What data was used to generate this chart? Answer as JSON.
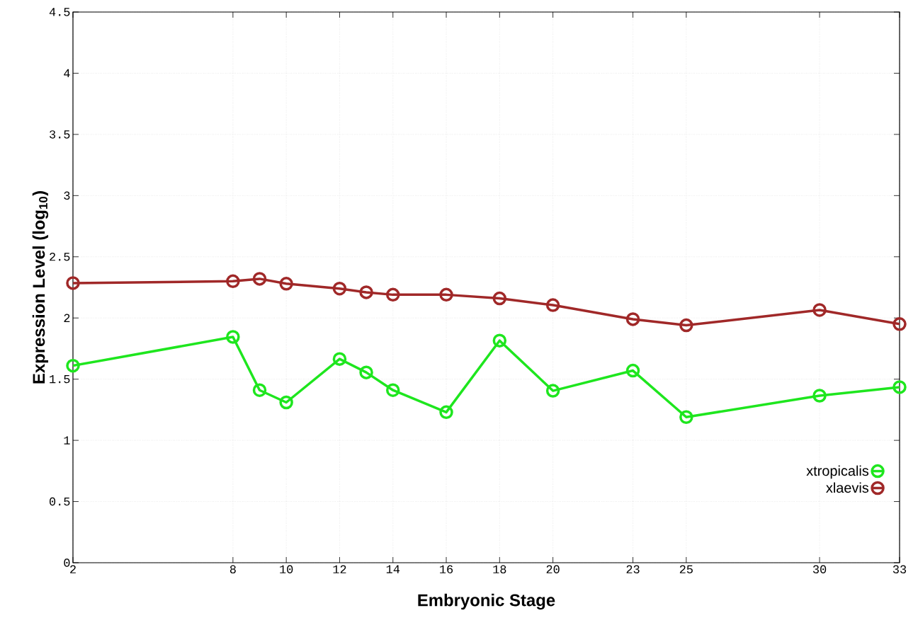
{
  "chart_data": {
    "type": "line",
    "xlabel": "Embryonic Stage",
    "ylabel": "Expression Level (log$_{10}$)",
    "x": [
      2,
      8,
      9,
      10,
      12,
      13,
      14,
      16,
      18,
      20,
      23,
      25,
      30,
      33
    ],
    "series": [
      {
        "name": "xtropicalis",
        "color": "#1ee61e",
        "values": [
          1.61,
          1.845,
          1.41,
          1.31,
          1.665,
          1.555,
          1.41,
          1.23,
          1.815,
          1.405,
          1.57,
          1.19,
          1.365,
          1.435
        ]
      },
      {
        "name": "xlaevis",
        "color": "#a02828",
        "values": [
          2.285,
          2.3,
          2.32,
          2.28,
          2.24,
          2.21,
          2.19,
          2.19,
          2.16,
          2.105,
          1.99,
          1.94,
          2.065,
          1.95
        ]
      }
    ],
    "xlim": [
      2,
      33
    ],
    "xticks": [
      2,
      8,
      10,
      12,
      14,
      16,
      18,
      20,
      23,
      25,
      30,
      33
    ],
    "ylim": [
      0,
      4.5
    ],
    "yticks": [
      0,
      0.5,
      1,
      1.5,
      2,
      2.5,
      3,
      3.5,
      4,
      4.5
    ],
    "grid": true,
    "legend": "bottom right",
    "marker": "circle",
    "line_style": "solid"
  }
}
